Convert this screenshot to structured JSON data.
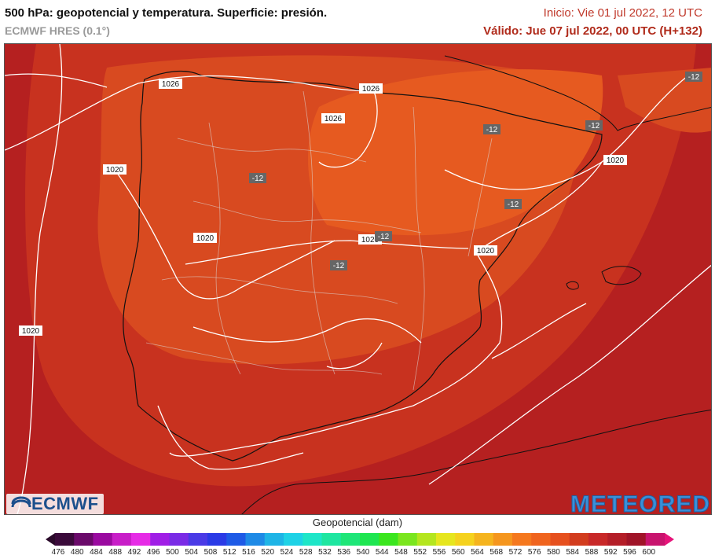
{
  "header": {
    "title": "500 hPa: geopotencial y temperatura. Superficie: presión.",
    "model": "ECMWF HRES (0.1°)",
    "init": "Inicio: Vie 01 jul 2022, 12 UTC",
    "valid": "Válido: Jue 07 jul 2022, 00 UTC (H+132)"
  },
  "map": {
    "region": "Iberian Peninsula",
    "isobar_labels": [
      "1026",
      "1026",
      "1026",
      "1020",
      "1020",
      "1020",
      "1020",
      "1020",
      "1020",
      "1020"
    ],
    "temperature_labels": [
      "-12",
      "-12",
      "-12",
      "-12",
      "-12",
      "-12",
      "-12"
    ],
    "colors": {
      "sea_dark": "#b31e1e",
      "band_mid": "#c8321f",
      "band_high": "#d84a20",
      "band_top": "#e65a20"
    }
  },
  "logos": {
    "ecmwf": "ECMWF",
    "meteored": "METEORED"
  },
  "colorbar": {
    "label": "Geopotencial (dam)",
    "ticks": [
      "476",
      "480",
      "484",
      "488",
      "492",
      "496",
      "500",
      "504",
      "508",
      "512",
      "516",
      "520",
      "524",
      "528",
      "532",
      "536",
      "540",
      "544",
      "548",
      "552",
      "556",
      "560",
      "564",
      "568",
      "572",
      "576",
      "580",
      "584",
      "588",
      "592",
      "596",
      "600"
    ],
    "colors": [
      "#3a0a3a",
      "#6a0a6a",
      "#9a0aa0",
      "#c81ec8",
      "#e62be6",
      "#a01ee6",
      "#7a2be6",
      "#4a3ae6",
      "#2a3ae6",
      "#1e5ae6",
      "#1e8ae6",
      "#1eb4e6",
      "#1ed2e6",
      "#1ee6c8",
      "#1ee6a0",
      "#1ee678",
      "#1ee650",
      "#3ae61e",
      "#7ae61e",
      "#b4e61e",
      "#e6e61e",
      "#f5d21e",
      "#f5b41e",
      "#f5961e",
      "#f5781e",
      "#f0641e",
      "#e6501e",
      "#d23c1e",
      "#c82828",
      "#b41e28",
      "#a01428",
      "#c8146e"
    ]
  }
}
